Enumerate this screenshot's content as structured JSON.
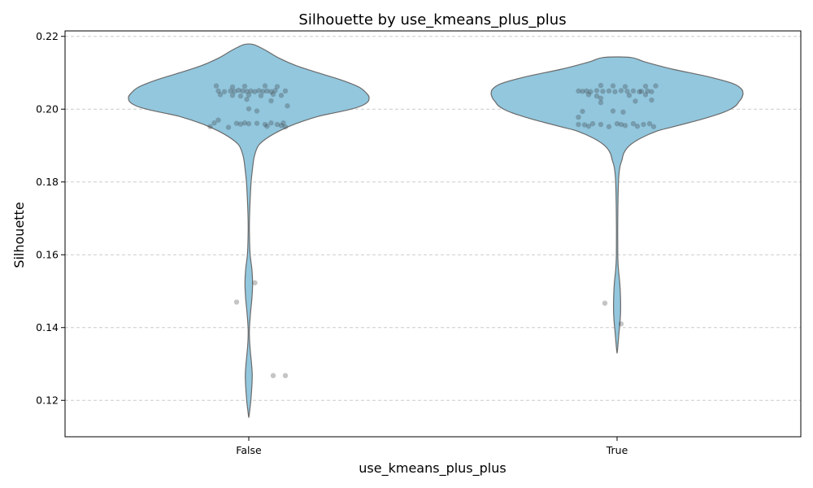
{
  "chart_data": {
    "type": "violin",
    "title": "Silhouette by use_kmeans_plus_plus",
    "xlabel": "use_kmeans_plus_plus",
    "ylabel": "Silhouette",
    "categories": [
      "False",
      "True"
    ],
    "ylim": [
      0.11,
      0.2215
    ],
    "yticks": [
      0.12,
      0.14,
      0.16,
      0.18,
      0.2,
      0.22
    ],
    "ytick_labels": [
      "0.12",
      "0.14",
      "0.16",
      "0.18",
      "0.20",
      "0.22"
    ],
    "grid": true,
    "colors": {
      "violin_fill": "#92c7de",
      "violin_edge": "#6a6a6a",
      "points": "#2f2f2f"
    },
    "violins": [
      {
        "category": "False",
        "profile": [
          [
            0.2178,
            0.006
          ],
          [
            0.217,
            0.016
          ],
          [
            0.216,
            0.026
          ],
          [
            0.214,
            0.044
          ],
          [
            0.212,
            0.068
          ],
          [
            0.21,
            0.1
          ],
          [
            0.208,
            0.134
          ],
          [
            0.206,
            0.16
          ],
          [
            0.204,
            0.172
          ],
          [
            0.203,
            0.174
          ],
          [
            0.202,
            0.172
          ],
          [
            0.201,
            0.164
          ],
          [
            0.2,
            0.148
          ],
          [
            0.199,
            0.124
          ],
          [
            0.198,
            0.1
          ],
          [
            0.196,
            0.068
          ],
          [
            0.194,
            0.044
          ],
          [
            0.192,
            0.026
          ],
          [
            0.19,
            0.014
          ],
          [
            0.187,
            0.008
          ],
          [
            0.183,
            0.005
          ],
          [
            0.179,
            0.003
          ],
          [
            0.17,
            0.001
          ],
          [
            0.165,
            0.001
          ],
          [
            0.16,
            0.002
          ],
          [
            0.156,
            0.0045
          ],
          [
            0.152,
            0.0055
          ],
          [
            0.148,
            0.0045
          ],
          [
            0.144,
            0.0025
          ],
          [
            0.14,
            0.001
          ],
          [
            0.137,
            0.001
          ],
          [
            0.134,
            0.002
          ],
          [
            0.13,
            0.004
          ],
          [
            0.127,
            0.005
          ],
          [
            0.124,
            0.0045
          ],
          [
            0.12,
            0.003
          ],
          [
            0.117,
            0.0012
          ],
          [
            0.1155,
            0.0002
          ]
        ],
        "points": [
          [
            -0.08,
            0.2064
          ],
          [
            -0.04,
            0.2061
          ],
          [
            -0.01,
            0.2063
          ],
          [
            0.04,
            0.2064
          ],
          [
            0.07,
            0.2062
          ],
          [
            -0.075,
            0.205
          ],
          [
            -0.06,
            0.2048
          ],
          [
            -0.045,
            0.205
          ],
          [
            -0.035,
            0.2049
          ],
          [
            -0.025,
            0.2052
          ],
          [
            -0.015,
            0.205
          ],
          [
            -0.005,
            0.2049
          ],
          [
            0.005,
            0.205
          ],
          [
            0.015,
            0.2048
          ],
          [
            0.025,
            0.2051
          ],
          [
            0.035,
            0.2049
          ],
          [
            0.045,
            0.205
          ],
          [
            0.055,
            0.2048
          ],
          [
            0.065,
            0.2051
          ],
          [
            0.09,
            0.205
          ],
          [
            -0.07,
            0.204
          ],
          [
            -0.04,
            0.2038
          ],
          [
            -0.02,
            0.2036
          ],
          [
            0.0,
            0.2039
          ],
          [
            0.03,
            0.2037
          ],
          [
            0.06,
            0.2041
          ],
          [
            0.08,
            0.2038
          ],
          [
            -0.005,
            0.2027
          ],
          [
            0.055,
            0.2023
          ],
          [
            0.095,
            0.2009
          ],
          [
            0.0,
            0.2001
          ],
          [
            0.02,
            0.1995
          ],
          [
            -0.075,
            0.197
          ],
          [
            -0.085,
            0.1962
          ],
          [
            -0.095,
            0.1952
          ],
          [
            -0.05,
            0.195
          ],
          [
            -0.03,
            0.1961
          ],
          [
            -0.02,
            0.1959
          ],
          [
            -0.01,
            0.1962
          ],
          [
            0.0,
            0.196
          ],
          [
            0.02,
            0.1961
          ],
          [
            0.04,
            0.1958
          ],
          [
            0.045,
            0.1953
          ],
          [
            0.055,
            0.1962
          ],
          [
            0.07,
            0.1958
          ],
          [
            0.08,
            0.1955
          ],
          [
            0.085,
            0.1962
          ],
          [
            0.09,
            0.1951
          ],
          [
            -0.03,
            0.147
          ],
          [
            0.015,
            0.1523
          ],
          [
            0.06,
            0.1268
          ],
          [
            0.09,
            0.1268
          ]
        ]
      },
      {
        "category": "True",
        "profile": [
          [
            0.2142,
            0.02
          ],
          [
            0.213,
            0.04
          ],
          [
            0.211,
            0.08
          ],
          [
            0.209,
            0.13
          ],
          [
            0.207,
            0.168
          ],
          [
            0.2055,
            0.18
          ],
          [
            0.2045,
            0.182
          ],
          [
            0.204,
            0.182
          ],
          [
            0.203,
            0.18
          ],
          [
            0.202,
            0.176
          ],
          [
            0.201,
            0.172
          ],
          [
            0.2,
            0.164
          ],
          [
            0.199,
            0.152
          ],
          [
            0.198,
            0.136
          ],
          [
            0.197,
            0.118
          ],
          [
            0.196,
            0.098
          ],
          [
            0.195,
            0.078
          ],
          [
            0.194,
            0.058
          ],
          [
            0.192,
            0.034
          ],
          [
            0.19,
            0.018
          ],
          [
            0.188,
            0.01
          ],
          [
            0.186,
            0.007
          ],
          [
            0.184,
            0.004
          ],
          [
            0.18,
            0.002
          ],
          [
            0.17,
            0.001
          ],
          [
            0.16,
            0.001
          ],
          [
            0.156,
            0.002
          ],
          [
            0.152,
            0.004
          ],
          [
            0.148,
            0.005
          ],
          [
            0.144,
            0.005
          ],
          [
            0.141,
            0.004
          ],
          [
            0.138,
            0.0025
          ],
          [
            0.135,
            0.0012
          ],
          [
            0.1332,
            0.0002
          ]
        ],
        "points": [
          [
            -0.04,
            0.2065
          ],
          [
            -0.01,
            0.2064
          ],
          [
            0.02,
            0.2062
          ],
          [
            0.07,
            0.2063
          ],
          [
            0.095,
            0.2064
          ],
          [
            -0.095,
            0.205
          ],
          [
            -0.085,
            0.2049
          ],
          [
            -0.075,
            0.205
          ],
          [
            -0.065,
            0.2048
          ],
          [
            -0.05,
            0.2051
          ],
          [
            -0.035,
            0.2049
          ],
          [
            -0.02,
            0.205
          ],
          [
            -0.005,
            0.2048
          ],
          [
            0.01,
            0.2051
          ],
          [
            0.025,
            0.2049
          ],
          [
            0.04,
            0.205
          ],
          [
            0.055,
            0.2048
          ],
          [
            0.06,
            0.2049
          ],
          [
            0.075,
            0.205
          ],
          [
            0.085,
            0.2048
          ],
          [
            -0.07,
            0.204
          ],
          [
            -0.05,
            0.2036
          ],
          [
            -0.04,
            0.203
          ],
          [
            -0.04,
            0.2018
          ],
          [
            0.03,
            0.2038
          ],
          [
            0.045,
            0.2022
          ],
          [
            0.07,
            0.204
          ],
          [
            0.085,
            0.2025
          ],
          [
            -0.085,
            0.1994
          ],
          [
            0.015,
            0.1992
          ],
          [
            -0.01,
            0.1995
          ],
          [
            -0.095,
            0.1978
          ],
          [
            -0.095,
            0.1958
          ],
          [
            -0.08,
            0.1957
          ],
          [
            -0.07,
            0.1953
          ],
          [
            -0.06,
            0.196
          ],
          [
            -0.04,
            0.1958
          ],
          [
            -0.02,
            0.1952
          ],
          [
            0.0,
            0.196
          ],
          [
            0.01,
            0.1958
          ],
          [
            0.02,
            0.1955
          ],
          [
            0.04,
            0.196
          ],
          [
            0.05,
            0.1953
          ],
          [
            0.065,
            0.1958
          ],
          [
            0.08,
            0.196
          ],
          [
            0.09,
            0.1952
          ],
          [
            -0.03,
            0.1467
          ],
          [
            0.01,
            0.141
          ]
        ]
      }
    ]
  }
}
